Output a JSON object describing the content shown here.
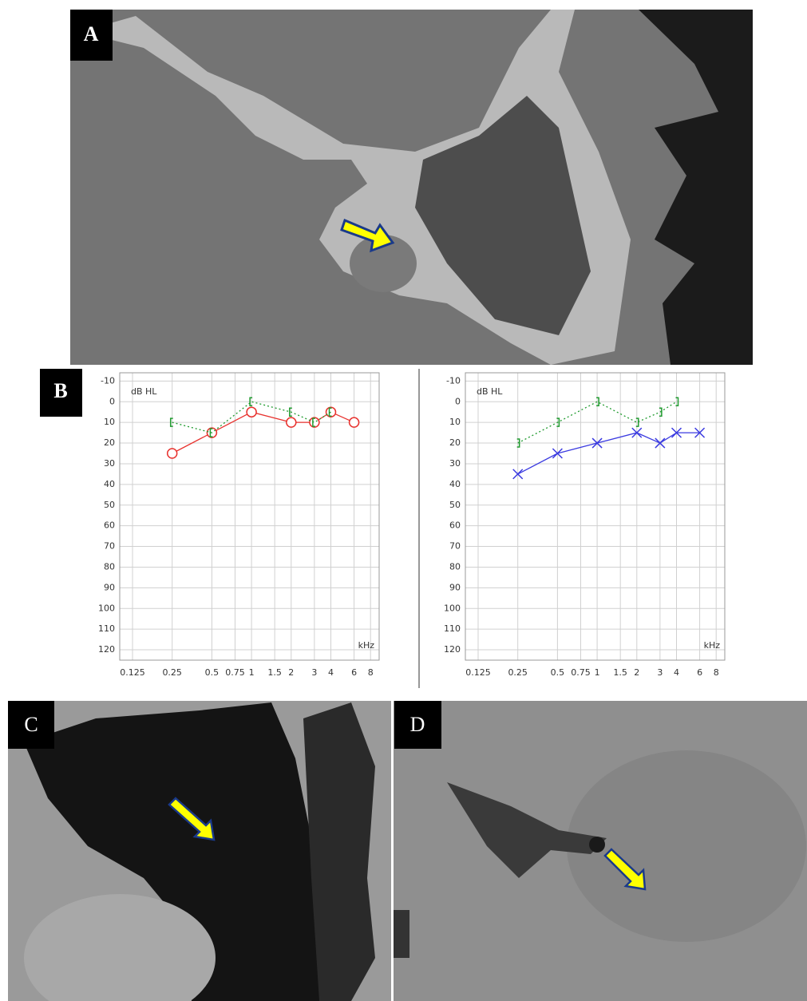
{
  "panel_labels": [
    "A",
    "B",
    "C",
    "D"
  ],
  "chart_data": [
    {
      "type": "line",
      "y_label": "dB HL",
      "x_label": "kHz",
      "log_x": true,
      "y_inverted": true,
      "grid": true,
      "xlim": [
        0.1,
        9.3
      ],
      "xticks": [
        0.125,
        0.25,
        0.5,
        0.75,
        1,
        1.5,
        2,
        3,
        4,
        6,
        8
      ],
      "ylim": [
        -14,
        125
      ],
      "yticks": [
        -10,
        0,
        10,
        20,
        30,
        40,
        50,
        60,
        70,
        80,
        90,
        100,
        110,
        120
      ],
      "x": [
        0.25,
        0.5,
        1,
        2,
        3,
        4,
        6
      ],
      "series": [
        {
          "color": "#e8322e",
          "marker": "circle",
          "line_style": "solid",
          "values": [
            25,
            15,
            5,
            10,
            10,
            5,
            10
          ]
        },
        {
          "color": "#1f9a2e",
          "marker": "bracket-left",
          "line_style": "dotted",
          "values": [
            10,
            15,
            0,
            5,
            10,
            5,
            null
          ]
        }
      ]
    },
    {
      "type": "line",
      "y_label": "dB HL",
      "x_label": "kHz",
      "log_x": true,
      "y_inverted": true,
      "grid": true,
      "xlim": [
        0.1,
        9.3
      ],
      "xticks": [
        0.125,
        0.25,
        0.5,
        0.75,
        1,
        1.5,
        2,
        3,
        4,
        6,
        8
      ],
      "ylim": [
        -14,
        125
      ],
      "yticks": [
        -10,
        0,
        10,
        20,
        30,
        40,
        50,
        60,
        70,
        80,
        90,
        100,
        110,
        120
      ],
      "x": [
        0.25,
        0.5,
        1,
        2,
        3,
        4,
        6
      ],
      "series": [
        {
          "color": "#3a3ae0",
          "marker": "x",
          "line_style": "solid",
          "values": [
            35,
            25,
            20,
            15,
            20,
            15,
            15
          ]
        },
        {
          "color": "#1f9a2e",
          "marker": "bracket-right",
          "line_style": "dotted",
          "values": [
            20,
            10,
            0,
            10,
            5,
            0,
            null
          ]
        }
      ]
    }
  ]
}
